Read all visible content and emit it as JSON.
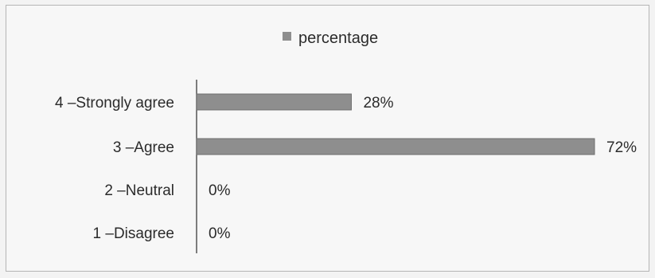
{
  "chart_data": {
    "type": "bar",
    "orientation": "horizontal",
    "legend_position": "top",
    "grid": false,
    "categories": [
      "4 –Strongly agree",
      "3 –Agree",
      "2 –Neutral",
      "1 –Disagree"
    ],
    "series": [
      {
        "name": "percentage",
        "values": [
          28,
          72,
          0,
          0
        ],
        "value_labels": [
          "28%",
          "72%",
          "0%",
          "0%"
        ],
        "color": "#8e8e8e"
      }
    ],
    "xlim": [
      0,
      72
    ]
  }
}
